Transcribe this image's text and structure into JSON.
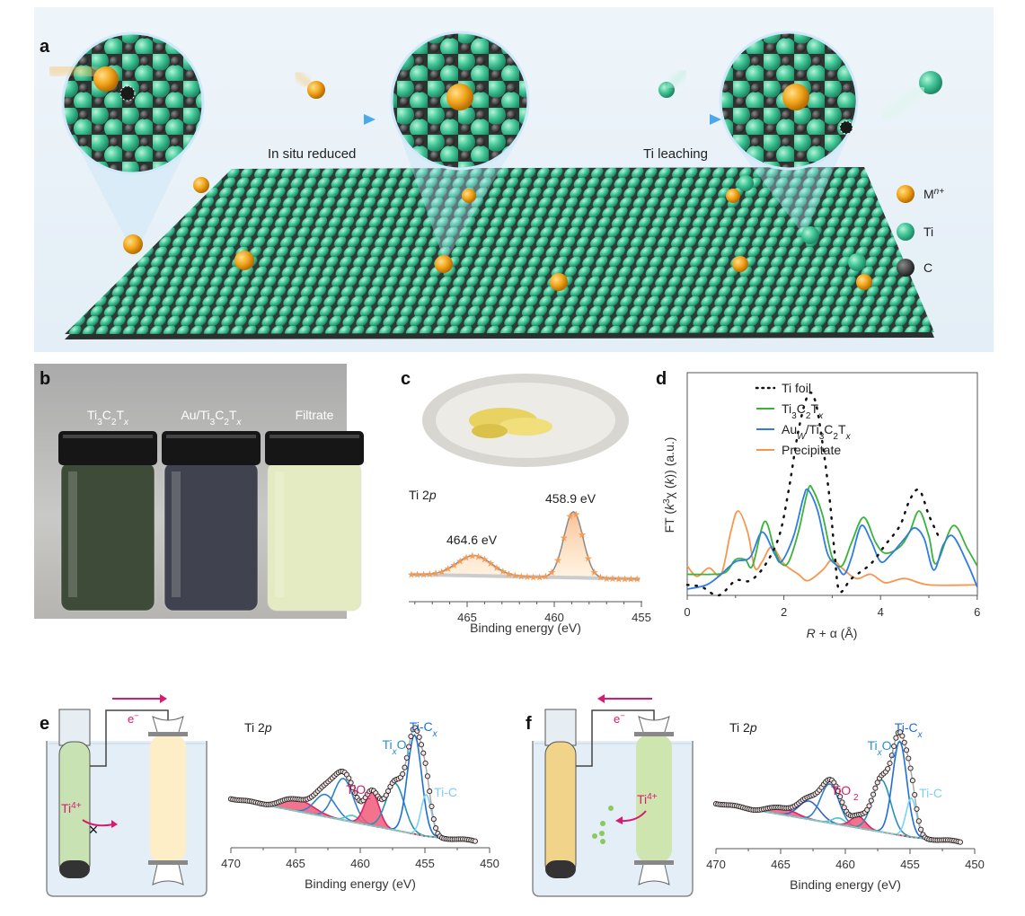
{
  "panel_labels": {
    "a": "a",
    "b": "b",
    "c": "c",
    "d": "d",
    "e": "e",
    "f": "f"
  },
  "panel_a": {
    "step1": "In situ reduced",
    "step2": "Ti leaching",
    "legend": [
      {
        "label": [
          [
            "M",
            ""
          ],
          [
            "n+",
            "sup-i"
          ]
        ],
        "color": "#f0a820"
      },
      {
        "label": [
          [
            "Ti",
            ""
          ]
        ],
        "color": "#3fc79a"
      },
      {
        "label": [
          [
            "C",
            ""
          ]
        ],
        "color": "#3a3a3a"
      }
    ]
  },
  "panel_b": {
    "vials": [
      {
        "label": [
          [
            "Ti",
            ""
          ],
          [
            "3",
            "sub"
          ],
          [
            "C",
            ""
          ],
          [
            "2",
            "sub"
          ],
          [
            "T",
            ""
          ],
          [
            "x",
            "sub-i"
          ]
        ],
        "color": "#3f4b39"
      },
      {
        "label": [
          [
            "Au/Ti",
            ""
          ],
          [
            "3",
            "sub"
          ],
          [
            "C",
            ""
          ],
          [
            "2",
            "sub"
          ],
          [
            "T",
            ""
          ],
          [
            "x",
            "sub-i"
          ]
        ],
        "color": "#40424f"
      },
      {
        "label": [
          [
            "Filtrate",
            ""
          ]
        ],
        "color": "#e4ebc2"
      }
    ]
  },
  "panel_c": {
    "spectrum_title": [
      [
        "Ti 2",
        ""
      ],
      [
        "p",
        "i"
      ]
    ],
    "peak_labels": [
      "464.6 eV",
      "458.9 eV"
    ],
    "xlabel": "Binding energy (eV)"
  },
  "panel_e": {
    "electron": [
      [
        "e",
        ""
      ],
      [
        "−",
        "sup"
      ]
    ],
    "ion": [
      [
        "Ti",
        ""
      ],
      [
        "4+",
        "sup"
      ]
    ],
    "spectrum_title": [
      [
        "Ti 2",
        ""
      ],
      [
        "p",
        "i"
      ]
    ],
    "component_labels": {
      "TixOy": [
        [
          "Ti",
          ""
        ],
        [
          "x",
          "sub-i"
        ],
        [
          "O",
          ""
        ],
        [
          "y",
          "sub-i"
        ]
      ],
      "TiCx": [
        [
          "Ti-C",
          ""
        ],
        [
          "x",
          "sub-i"
        ]
      ],
      "TiO2": [
        [
          "TiO",
          ""
        ],
        [
          "2",
          "sub"
        ]
      ],
      "TiC": [
        [
          "Ti-C",
          ""
        ]
      ]
    }
  },
  "panel_f": {
    "electron": [
      [
        "e",
        ""
      ],
      [
        "−",
        "sup"
      ]
    ],
    "ion": [
      [
        "Ti",
        ""
      ],
      [
        "4+",
        "sup"
      ]
    ],
    "spectrum_title": [
      [
        "Ti 2",
        ""
      ],
      [
        "p",
        "i"
      ]
    ],
    "component_labels": {
      "TixOy": [
        [
          "Ti",
          ""
        ],
        [
          "x",
          "sub-i"
        ],
        [
          "O",
          ""
        ],
        [
          "y",
          "sub-i"
        ]
      ],
      "TiCx": [
        [
          "Ti-C",
          ""
        ],
        [
          "x",
          "sub-i"
        ]
      ],
      "TiO2": [
        [
          "TiO",
          ""
        ],
        [
          "  2",
          "sub"
        ]
      ],
      "TiC": [
        [
          "Ti-C",
          ""
        ]
      ]
    }
  },
  "chart_data": [
    {
      "id": "c",
      "type": "area",
      "title": "Ti 2p",
      "xlabel": "Binding energy (eV)",
      "ylabel": "",
      "xlim": [
        468.2,
        455
      ],
      "ylim": [
        0,
        1
      ],
      "xticks": [
        "465",
        "460",
        "455"
      ],
      "background": {
        "left": 0.17,
        "right": 0.12
      },
      "components": [
        {
          "center": 464.6,
          "amplitude": 0.22,
          "width": 1.0
        },
        {
          "center": 458.9,
          "amplitude": 0.72,
          "width": 0.55
        }
      ],
      "annotations": [
        "464.6 eV",
        "458.9 eV"
      ]
    },
    {
      "id": "d",
      "type": "line",
      "xlabel": [
        [
          "R",
          "i"
        ],
        [
          " + α (Å)",
          ""
        ]
      ],
      "ylabel": [
        [
          "FT (",
          ""
        ],
        [
          "k",
          "i"
        ],
        [
          "3",
          "sup"
        ],
        [
          "χ (",
          ""
        ],
        [
          "k",
          "i"
        ],
        [
          ")) (a.u.)",
          ""
        ]
      ],
      "xlim": [
        0,
        6
      ],
      "ylim": [
        0,
        1
      ],
      "xticks": [
        "0",
        "2",
        "4",
        "6"
      ],
      "legend_position": "top-right",
      "series": [
        {
          "name": [
            [
              "Ti foil",
              ""
            ]
          ],
          "color": "#111111",
          "style": "dotted",
          "x": [
            0,
            0.3,
            0.65,
            1.0,
            1.3,
            1.6,
            1.9,
            2.1,
            2.3,
            2.5,
            2.65,
            2.8,
            2.95,
            3.05,
            3.15,
            3.4,
            3.8,
            4.1,
            4.4,
            4.6,
            4.8,
            5.0,
            5.2
          ],
          "y": [
            0.05,
            0.04,
            0.0,
            0.07,
            0.07,
            0.14,
            0.28,
            0.5,
            0.78,
            0.95,
            0.92,
            0.72,
            0.45,
            0.2,
            0.02,
            0.08,
            0.15,
            0.24,
            0.33,
            0.45,
            0.5,
            0.38,
            0.28
          ]
        },
        {
          "name": [
            [
              "Ti",
              ""
            ],
            [
              "3",
              "sub"
            ],
            [
              "C",
              ""
            ],
            [
              "2",
              "sub"
            ],
            [
              "T",
              ""
            ],
            [
              "x",
              "sub-i"
            ]
          ],
          "color": "#3bb33b",
          "style": "solid",
          "x": [
            0,
            0.5,
            0.8,
            1.0,
            1.2,
            1.35,
            1.6,
            1.8,
            1.95,
            2.1,
            2.3,
            2.5,
            2.6,
            2.8,
            3.0,
            3.2,
            3.4,
            3.65,
            3.9,
            4.1,
            4.4,
            4.6,
            4.8,
            5.0,
            5.15,
            5.5,
            5.8,
            6.0
          ],
          "y": [
            0.1,
            0.1,
            0.11,
            0.17,
            0.17,
            0.14,
            0.35,
            0.22,
            0.15,
            0.16,
            0.3,
            0.5,
            0.5,
            0.38,
            0.18,
            0.14,
            0.25,
            0.37,
            0.25,
            0.2,
            0.23,
            0.3,
            0.4,
            0.28,
            0.15,
            0.33,
            0.22,
            0.14
          ]
        },
        {
          "name": [
            [
              "Au",
              ""
            ],
            [
              "W",
              "sub-i"
            ],
            [
              "/Ti",
              ""
            ],
            [
              "3",
              "sub"
            ],
            [
              "C",
              ""
            ],
            [
              "2",
              "sub"
            ],
            [
              "T",
              ""
            ],
            [
              "x",
              "sub-i"
            ]
          ],
          "color": "#2f7de1",
          "style": "solid",
          "x": [
            0,
            0.4,
            0.7,
            1.0,
            1.3,
            1.55,
            1.8,
            1.95,
            2.2,
            2.4,
            2.5,
            2.7,
            2.9,
            3.1,
            3.25,
            3.4,
            3.6,
            3.8,
            4.0,
            4.2,
            4.5,
            4.7,
            4.9,
            5.1,
            5.3,
            5.5,
            5.8,
            6.0
          ],
          "y": [
            0.03,
            0.05,
            0.1,
            0.16,
            0.18,
            0.3,
            0.2,
            0.16,
            0.28,
            0.46,
            0.5,
            0.4,
            0.2,
            0.14,
            0.1,
            0.18,
            0.33,
            0.26,
            0.16,
            0.19,
            0.27,
            0.32,
            0.27,
            0.12,
            0.24,
            0.28,
            0.15,
            0.04
          ]
        },
        {
          "name": [
            [
              "Precipitate",
              ""
            ]
          ],
          "color": "#f7964f",
          "style": "solid",
          "x": [
            0,
            0.2,
            0.45,
            0.7,
            0.9,
            1.05,
            1.25,
            1.4,
            1.55,
            1.75,
            2.0,
            2.3,
            2.5,
            2.8,
            3.0,
            3.2,
            3.5,
            3.8,
            4.1,
            4.5,
            5.0,
            6.0
          ],
          "y": [
            0.14,
            0.09,
            0.13,
            0.1,
            0.3,
            0.4,
            0.3,
            0.13,
            0.16,
            0.23,
            0.15,
            0.1,
            0.07,
            0.12,
            0.17,
            0.13,
            0.08,
            0.1,
            0.06,
            0.08,
            0.05,
            0.05
          ]
        }
      ]
    },
    {
      "id": "e",
      "type": "area",
      "title": "Ti 2p",
      "xlabel": "Binding energy (eV)",
      "xlim": [
        470,
        450
      ],
      "ylim": [
        0,
        1
      ],
      "xticks": [
        "470",
        "465",
        "460",
        "455",
        "450"
      ],
      "data_range": [
        470,
        451
      ],
      "background": {
        "left": 0.38,
        "right": 0.05,
        "knee": 455
      },
      "components": [
        {
          "name": "TiO2 satellite",
          "center": 464.8,
          "amplitude": 0.09,
          "width": 1.2,
          "color": "#e0206a",
          "filled": true
        },
        {
          "name": "Blue 462.7",
          "center": 462.7,
          "amplitude": 0.17,
          "width": 0.8,
          "color": "#2f7fd0"
        },
        {
          "name": "Blue 461.3",
          "center": 461.3,
          "amplitude": 0.32,
          "width": 0.75,
          "color": "#2f7fd0"
        },
        {
          "name": "Cyan 460.6",
          "center": 460.6,
          "amplitude": 0.05,
          "width": 0.5,
          "color": "#49c6c9"
        },
        {
          "name": "TiO2",
          "center": 459.1,
          "amplitude": 0.26,
          "width": 0.55,
          "color": "#e0206a",
          "filled": true
        },
        {
          "name": "TixOy",
          "center": 457.3,
          "amplitude": 0.36,
          "width": 0.7,
          "color": "#2a8fb8"
        },
        {
          "name": "Ti-Cx",
          "center": 455.8,
          "amplitude": 0.76,
          "width": 0.55,
          "color": "#1f6fd6"
        },
        {
          "name": "Ti-C",
          "center": 454.9,
          "amplitude": 0.32,
          "width": 0.4,
          "color": "#7fd3f2"
        }
      ]
    },
    {
      "id": "f",
      "type": "area",
      "title": "Ti 2p",
      "xlabel": "Binding energy (eV)",
      "xlim": [
        470,
        450
      ],
      "ylim": [
        0,
        1
      ],
      "xticks": [
        "470",
        "465",
        "460",
        "455",
        "450"
      ],
      "data_range": [
        470,
        451
      ],
      "background": {
        "left": 0.35,
        "right": 0.05,
        "knee": 455
      },
      "components": [
        {
          "name": "TiO2 satellite",
          "center": 464.8,
          "amplitude": 0.05,
          "width": 1.0,
          "color": "#e0206a",
          "filled": true
        },
        {
          "name": "Blue 462.8",
          "center": 462.8,
          "amplitude": 0.14,
          "width": 0.8,
          "color": "#3a5fc8"
        },
        {
          "name": "Blue 461.2",
          "center": 461.2,
          "amplitude": 0.3,
          "width": 0.7,
          "color": "#2f7fd0"
        },
        {
          "name": "Cyan 460.5",
          "center": 460.5,
          "amplitude": 0.05,
          "width": 0.5,
          "color": "#49c6c9"
        },
        {
          "name": "TiO2",
          "center": 459.0,
          "amplitude": 0.09,
          "width": 0.55,
          "color": "#e0206a",
          "filled": true
        },
        {
          "name": "TixOy",
          "center": 457.2,
          "amplitude": 0.4,
          "width": 0.7,
          "color": "#2a8fb8"
        },
        {
          "name": "Ti-Cx",
          "center": 455.8,
          "amplitude": 0.72,
          "width": 0.55,
          "color": "#1f6fd6"
        },
        {
          "name": "Ti-C",
          "center": 454.9,
          "amplitude": 0.3,
          "width": 0.4,
          "color": "#7fd3f2"
        }
      ]
    }
  ]
}
